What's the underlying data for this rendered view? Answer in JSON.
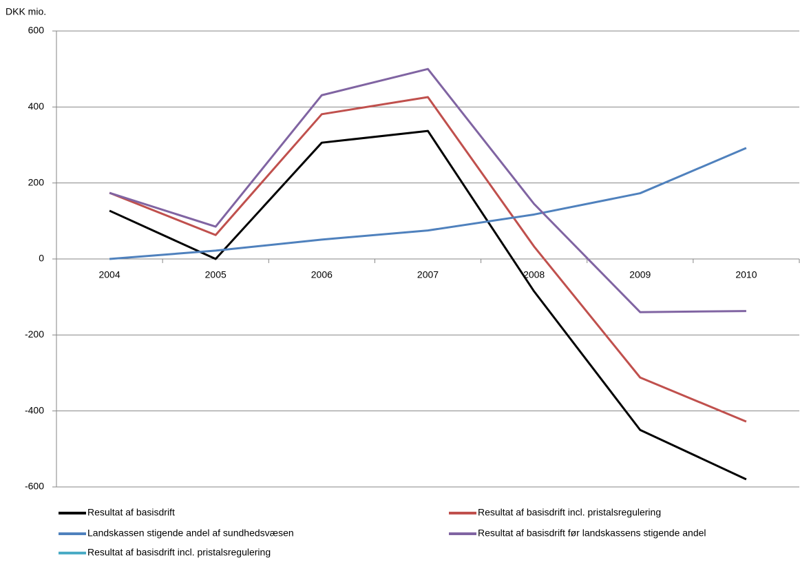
{
  "chart_data": {
    "type": "line",
    "y_label": "DKK mio.",
    "categories": [
      "2004",
      "2005",
      "2006",
      "2007",
      "2008",
      "2009",
      "2010"
    ],
    "series": [
      {
        "name": "Resultat af basisdrift",
        "color": "#000000",
        "values": [
          127,
          0,
          306,
          337,
          -85,
          -450,
          -580
        ]
      },
      {
        "name": "Resultat af basisdrift incl. pristalsregulering",
        "color": "#c0504d",
        "values": [
          174,
          63,
          381,
          426,
          33,
          -312,
          -428
        ]
      },
      {
        "name": "Landskassen stigende andel af sundhedsvæsen",
        "color": "#4f81bd",
        "values": [
          0,
          22,
          51,
          75,
          117,
          173,
          292
        ]
      },
      {
        "name": "Resultat af basisdrift før landskassens stigende andel",
        "color": "#8064a2",
        "values": [
          174,
          85,
          431,
          500,
          145,
          -140,
          -137
        ]
      },
      {
        "name": "Resultat af basisdrift incl. pristalsregulering",
        "color": "#4bacc6",
        "values": [
          null,
          null,
          null,
          null,
          null,
          null,
          null
        ]
      }
    ],
    "ylim": [
      -600,
      600
    ],
    "yticks": [
      -600,
      -400,
      -200,
      0,
      200,
      400,
      600
    ],
    "grid": true
  }
}
